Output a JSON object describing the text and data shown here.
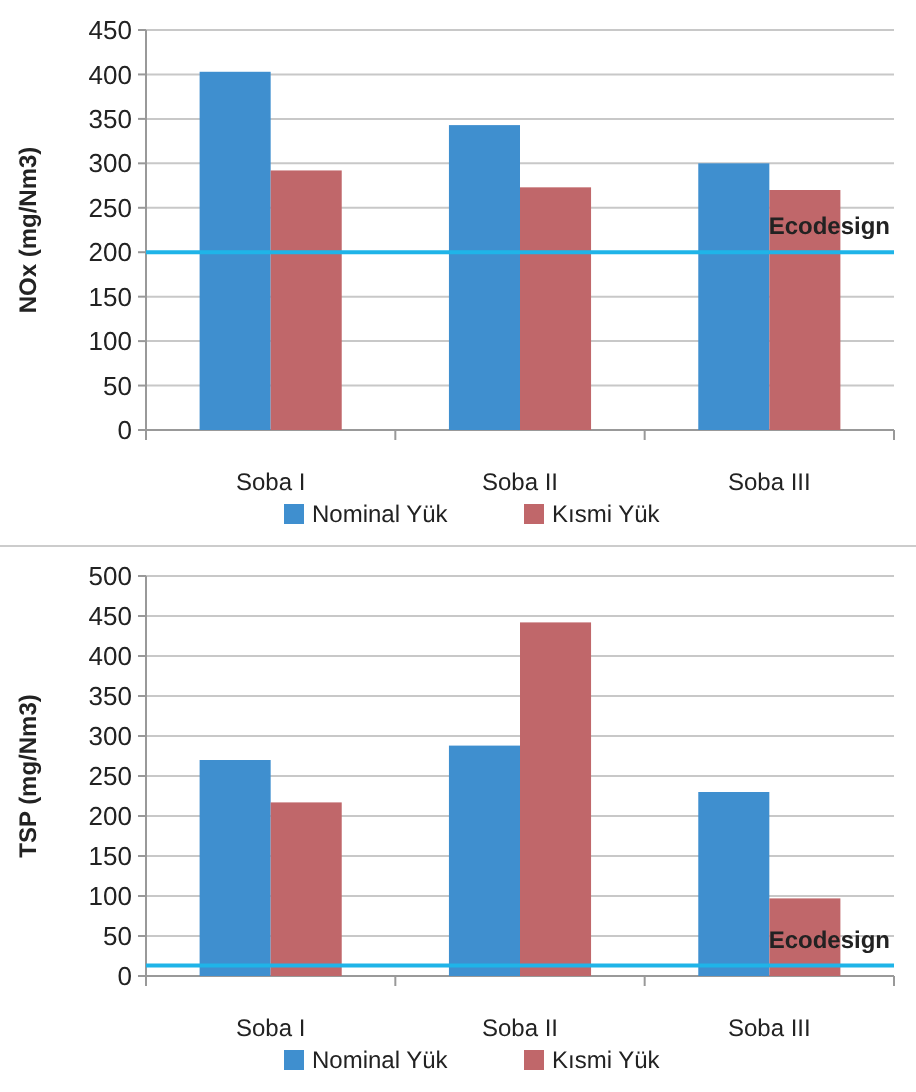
{
  "chart_data": [
    {
      "type": "bar",
      "ylabel": "NOx (mg/Nm3)",
      "categories": [
        "Soba I",
        "Soba II",
        "Soba III"
      ],
      "series": [
        {
          "name": "Nominal Yük",
          "color": "#3f8fcf",
          "values": [
            403,
            343,
            300
          ]
        },
        {
          "name": "Kısmi Yük",
          "color": "#c0676a",
          "values": [
            292,
            273,
            270
          ]
        }
      ],
      "ylim": [
        0,
        450
      ],
      "yticks": [
        0,
        50,
        100,
        150,
        200,
        250,
        300,
        350,
        400,
        450
      ],
      "grid": "y",
      "legend": "bottom",
      "ref_lines": [
        {
          "axis": "y",
          "value": 200,
          "label": "Ecodesign",
          "color": "#1fb4e8"
        }
      ]
    },
    {
      "type": "bar",
      "ylabel": "TSP (mg/Nm3)",
      "categories": [
        "Soba I",
        "Soba II",
        "Soba III"
      ],
      "series": [
        {
          "name": "Nominal Yük",
          "color": "#3f8fcf",
          "values": [
            270,
            288,
            230
          ]
        },
        {
          "name": "Kısmi Yük",
          "color": "#c0676a",
          "values": [
            217,
            442,
            97
          ]
        }
      ],
      "ylim": [
        0,
        500
      ],
      "yticks": [
        0,
        50,
        100,
        150,
        200,
        250,
        300,
        350,
        400,
        450,
        500
      ],
      "grid": "y",
      "legend": "bottom",
      "ref_lines": [
        {
          "axis": "y",
          "value": 13,
          "label": "Ecodesign",
          "color": "#1fb4e8"
        }
      ]
    }
  ]
}
